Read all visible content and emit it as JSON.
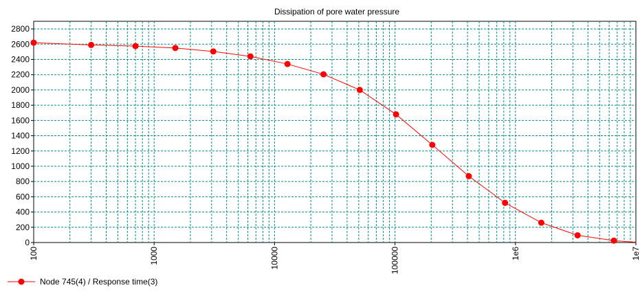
{
  "chart_data": {
    "type": "line",
    "title": "Dissipation of pore water pressure",
    "xlabel": "",
    "ylabel": "",
    "x_scale": "log",
    "xlim": [
      100,
      10000000
    ],
    "ylim": [
      0,
      2900
    ],
    "grid": true,
    "legend_position": "bottom-left",
    "y_ticks": [
      "0",
      "200",
      "400",
      "600",
      "800",
      "1000",
      "1200",
      "1400",
      "1600",
      "1800",
      "2000",
      "2200",
      "2400",
      "2600",
      "2800"
    ],
    "x_ticks": [
      {
        "value": 100,
        "label": "100"
      },
      {
        "value": 1000,
        "label": "1000"
      },
      {
        "value": 10000,
        "label": "10000"
      },
      {
        "value": 100000,
        "label": "100000"
      },
      {
        "value": 1000000,
        "label": "1e6"
      },
      {
        "value": 10000000,
        "label": "1e7"
      }
    ],
    "series": [
      {
        "name": "Node 745(4) / Response time(3)",
        "color": "#ff0000",
        "marker": "circle",
        "x": [
          100,
          300,
          700,
          1500,
          3100,
          6300,
          12800,
          25500,
          51000,
          102000,
          204000,
          410000,
          820000,
          1640000,
          3280000,
          6560000,
          10000000
        ],
        "y": [
          2620,
          2590,
          2575,
          2550,
          2505,
          2440,
          2340,
          2205,
          2000,
          1680,
          1280,
          870,
          520,
          260,
          95,
          25,
          5
        ]
      }
    ]
  }
}
